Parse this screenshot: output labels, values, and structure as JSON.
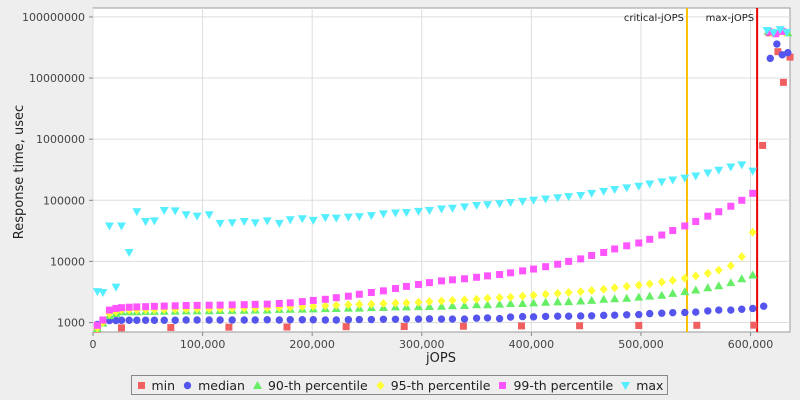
{
  "chart_data": {
    "type": "scatter",
    "xlabel": "jOPS",
    "ylabel": "Response time, usec",
    "xlim": [
      0,
      636000
    ],
    "ylim": [
      700,
      140000000
    ],
    "y_scale": "log",
    "x_ticks": [
      0,
      100000,
      200000,
      300000,
      400000,
      500000,
      600000
    ],
    "x_tick_labels": [
      "0",
      "100,000",
      "200,000",
      "300,000",
      "400,000",
      "500,000",
      "600,000"
    ],
    "y_ticks": [
      1000,
      10000,
      100000,
      1000000,
      10000000,
      100000000
    ],
    "y_tick_labels": [
      "1000",
      "10000",
      "100000",
      "1000000",
      "10000000",
      "100000000"
    ],
    "grid": true,
    "legend_position": "bottom",
    "markers": [
      {
        "label": "critical-jOPS",
        "x": 542000,
        "color": "#ffc000"
      },
      {
        "label": "max-jOPS",
        "x": 606000,
        "color": "#ee0000"
      }
    ],
    "series": [
      {
        "name": "min",
        "color": "#f06060",
        "shape": "square",
        "x": [
          4000,
          26000,
          71000,
          124000,
          177000,
          231000,
          284000,
          338000,
          391000,
          444000,
          498000,
          551000,
          603000,
          611000,
          617000,
          625000,
          630000,
          636000
        ],
        "y": [
          780,
          820,
          830,
          840,
          845,
          855,
          860,
          870,
          880,
          885,
          895,
          900,
          905,
          790000,
          55000000,
          27000000,
          8500000,
          22000000
        ]
      },
      {
        "name": "median",
        "color": "#5555ee",
        "shape": "circle",
        "x": [
          4000,
          9000,
          15000,
          21000,
          26000,
          33000,
          40000,
          48000,
          56000,
          65000,
          75000,
          85000,
          95000,
          106000,
          116000,
          127000,
          138000,
          148000,
          159000,
          170000,
          180000,
          191000,
          201000,
          212000,
          222000,
          233000,
          243000,
          254000,
          265000,
          276000,
          286000,
          297000,
          307000,
          318000,
          328000,
          339000,
          350000,
          360000,
          371000,
          381000,
          392000,
          402000,
          413000,
          424000,
          434000,
          445000,
          455000,
          466000,
          476000,
          487000,
          498000,
          508000,
          519000,
          529000,
          540000,
          550000,
          561000,
          571000,
          582000,
          592000,
          602000,
          612000,
          618000,
          624000,
          629000,
          634000
        ],
        "y": [
          930,
          1000,
          1080,
          1080,
          1090,
          1090,
          1090,
          1090,
          1090,
          1090,
          1090,
          1100,
          1100,
          1100,
          1100,
          1100,
          1100,
          1100,
          1110,
          1100,
          1110,
          1110,
          1110,
          1100,
          1100,
          1110,
          1120,
          1120,
          1130,
          1130,
          1140,
          1140,
          1150,
          1140,
          1140,
          1140,
          1180,
          1190,
          1160,
          1230,
          1250,
          1240,
          1260,
          1270,
          1270,
          1280,
          1290,
          1310,
          1320,
          1340,
          1350,
          1400,
          1420,
          1450,
          1460,
          1480,
          1550,
          1600,
          1600,
          1650,
          1700,
          1850,
          21000000,
          36000000,
          24000000,
          26000000
        ]
      },
      {
        "name": "90-th percentile",
        "color": "#66ee66",
        "shape": "triangle",
        "x": [
          4000,
          9000,
          15000,
          21000,
          26000,
          33000,
          40000,
          48000,
          56000,
          65000,
          75000,
          85000,
          95000,
          106000,
          116000,
          127000,
          138000,
          148000,
          159000,
          170000,
          180000,
          191000,
          201000,
          212000,
          222000,
          233000,
          243000,
          254000,
          265000,
          276000,
          286000,
          297000,
          307000,
          318000,
          328000,
          339000,
          350000,
          360000,
          371000,
          381000,
          392000,
          402000,
          413000,
          424000,
          434000,
          445000,
          455000,
          466000,
          476000,
          487000,
          498000,
          508000,
          519000,
          529000,
          540000,
          550000,
          561000,
          571000,
          582000,
          592000,
          602000,
          616000,
          622000,
          628000,
          634000
        ],
        "y": [
          800,
          980,
          1300,
          1400,
          1500,
          1500,
          1500,
          1520,
          1520,
          1530,
          1540,
          1550,
          1560,
          1560,
          1570,
          1580,
          1590,
          1600,
          1600,
          1640,
          1650,
          1660,
          1670,
          1690,
          1700,
          1720,
          1720,
          1750,
          1760,
          1800,
          1800,
          1820,
          1830,
          1850,
          1880,
          1900,
          1950,
          1950,
          2000,
          2050,
          2050,
          2100,
          2150,
          2180,
          2200,
          2250,
          2300,
          2400,
          2450,
          2500,
          2600,
          2700,
          2800,
          3000,
          3200,
          3400,
          3700,
          4000,
          4500,
          5200,
          6000,
          58000000,
          55000000,
          60000000,
          55000000
        ]
      },
      {
        "name": "95-th percentile",
        "color": "#ffff33",
        "shape": "diamond",
        "x": [
          4000,
          9000,
          15000,
          21000,
          26000,
          33000,
          40000,
          48000,
          56000,
          65000,
          75000,
          85000,
          95000,
          106000,
          116000,
          127000,
          138000,
          148000,
          159000,
          170000,
          180000,
          191000,
          201000,
          212000,
          222000,
          233000,
          243000,
          254000,
          265000,
          276000,
          286000,
          297000,
          307000,
          318000,
          328000,
          339000,
          350000,
          360000,
          371000,
          381000,
          392000,
          402000,
          413000,
          424000,
          434000,
          445000,
          455000,
          466000,
          476000,
          487000,
          498000,
          508000,
          519000,
          529000,
          540000,
          550000,
          561000,
          571000,
          582000,
          592000,
          602000,
          619000,
          625000,
          631000
        ],
        "y": [
          820,
          1000,
          1400,
          1500,
          1600,
          1600,
          1600,
          1620,
          1630,
          1640,
          1650,
          1660,
          1670,
          1680,
          1690,
          1700,
          1710,
          1720,
          1740,
          1760,
          1790,
          1820,
          1850,
          1880,
          1920,
          1950,
          1980,
          2000,
          2050,
          2080,
          2100,
          2150,
          2200,
          2250,
          2300,
          2350,
          2400,
          2500,
          2550,
          2600,
          2700,
          2800,
          2900,
          3000,
          3100,
          3200,
          3350,
          3500,
          3700,
          3900,
          4100,
          4300,
          4600,
          4900,
          5300,
          5800,
          6400,
          7200,
          8500,
          12000,
          30000,
          56000000,
          54000000,
          57000000
        ]
      },
      {
        "name": "99-th percentile",
        "color": "#ff55ff",
        "shape": "square",
        "x": [
          4000,
          9000,
          15000,
          21000,
          26000,
          33000,
          40000,
          48000,
          56000,
          65000,
          75000,
          85000,
          95000,
          106000,
          116000,
          127000,
          138000,
          148000,
          159000,
          170000,
          180000,
          191000,
          201000,
          212000,
          222000,
          233000,
          243000,
          254000,
          265000,
          276000,
          286000,
          297000,
          307000,
          318000,
          328000,
          339000,
          350000,
          360000,
          371000,
          381000,
          392000,
          402000,
          413000,
          424000,
          434000,
          445000,
          455000,
          466000,
          476000,
          487000,
          498000,
          508000,
          519000,
          529000,
          540000,
          550000,
          561000,
          571000,
          582000,
          592000,
          602000,
          617000,
          623000,
          629000
        ],
        "y": [
          900,
          1100,
          1600,
          1700,
          1750,
          1780,
          1800,
          1820,
          1840,
          1860,
          1880,
          1900,
          1910,
          1920,
          1930,
          1950,
          1960,
          1980,
          2000,
          2050,
          2100,
          2200,
          2300,
          2400,
          2550,
          2700,
          2900,
          3100,
          3300,
          3600,
          3900,
          4200,
          4500,
          4800,
          5000,
          5200,
          5500,
          5800,
          6100,
          6500,
          7000,
          7500,
          8200,
          9000,
          10000,
          11000,
          12500,
          14000,
          16000,
          18000,
          20000,
          23000,
          27000,
          32000,
          38000,
          45000,
          55000,
          65000,
          80000,
          100000,
          130000,
          57000000,
          53000000,
          58000000
        ]
      },
      {
        "name": "max",
        "color": "#55eeff",
        "shape": "triangle-down",
        "x": [
          4000,
          9000,
          15000,
          21000,
          26000,
          33000,
          40000,
          48000,
          56000,
          65000,
          75000,
          85000,
          95000,
          106000,
          116000,
          127000,
          138000,
          148000,
          159000,
          170000,
          180000,
          191000,
          201000,
          212000,
          222000,
          233000,
          243000,
          254000,
          265000,
          276000,
          286000,
          297000,
          307000,
          318000,
          328000,
          339000,
          350000,
          360000,
          371000,
          381000,
          392000,
          402000,
          413000,
          424000,
          434000,
          445000,
          455000,
          466000,
          476000,
          487000,
          498000,
          508000,
          519000,
          529000,
          540000,
          550000,
          561000,
          571000,
          582000,
          592000,
          602000,
          615000,
          621000,
          627000,
          633000
        ],
        "y": [
          3200,
          3100,
          38000,
          3800,
          38000,
          14000,
          65000,
          45000,
          46000,
          68000,
          67000,
          58000,
          55000,
          58000,
          42000,
          43000,
          45000,
          43000,
          46000,
          42000,
          48000,
          50000,
          47000,
          52000,
          51000,
          53000,
          54000,
          56000,
          60000,
          62000,
          63000,
          66000,
          68000,
          72000,
          74000,
          78000,
          82000,
          85000,
          88000,
          92000,
          96000,
          100000,
          105000,
          110000,
          115000,
          120000,
          130000,
          140000,
          150000,
          160000,
          170000,
          185000,
          200000,
          215000,
          230000,
          250000,
          280000,
          310000,
          350000,
          380000,
          300000,
          60000000,
          55000000,
          62000000,
          56000000
        ]
      }
    ]
  }
}
